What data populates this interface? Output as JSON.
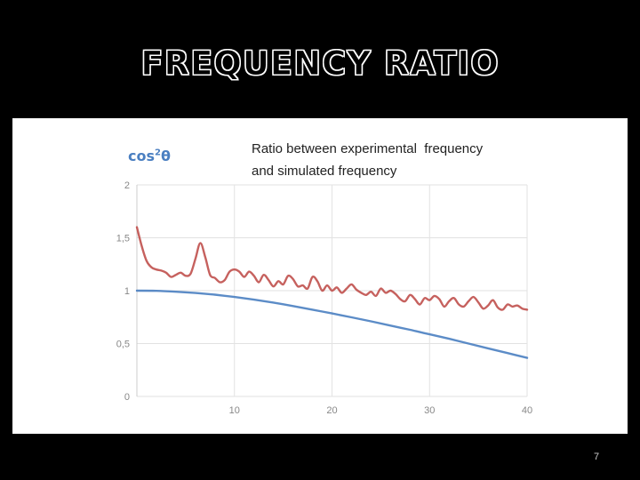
{
  "slide": {
    "title": "FREQUENCY RATIO",
    "page_number": "7"
  },
  "chart_data": {
    "type": "line",
    "title": "",
    "xlabel": "",
    "ylabel": "",
    "xlim": [
      0,
      40
    ],
    "ylim": [
      0,
      2
    ],
    "x_ticks": [
      10,
      20,
      30,
      40
    ],
    "x_tick_labels": [
      "10",
      "20",
      "30",
      "40"
    ],
    "y_ticks": [
      0,
      0.5,
      1,
      1.5,
      2
    ],
    "y_tick_labels": [
      "0",
      "0,5",
      "1",
      "1,5",
      "2"
    ],
    "grid": true,
    "series": [
      {
        "name": "cos²θ",
        "name_base": "cos",
        "name_sup": "2",
        "name_tail": "θ",
        "color": "#4a7fc1",
        "x": [
          0,
          2,
          4,
          6,
          8,
          10,
          12,
          14,
          16,
          18,
          20,
          22,
          24,
          26,
          28,
          30,
          32,
          34,
          36,
          38,
          40
        ],
        "y": [
          1.0,
          0.998,
          0.99,
          0.978,
          0.962,
          0.94,
          0.915,
          0.887,
          0.855,
          0.82,
          0.785,
          0.748,
          0.71,
          0.67,
          0.63,
          0.587,
          0.545,
          0.5,
          0.455,
          0.41,
          0.365
        ]
      },
      {
        "name": "Ratio between experimental frequency and simulated frequency",
        "name_line1": "Ratio between experimental  frequency",
        "name_line2": "and simulated frequency",
        "color": "#c0504d",
        "x": [
          0,
          0.5,
          1,
          1.5,
          2,
          2.5,
          3,
          3.5,
          4,
          4.5,
          5,
          5.5,
          6,
          6.5,
          7,
          7.5,
          8,
          8.5,
          9,
          9.5,
          10,
          10.5,
          11,
          11.5,
          12,
          12.5,
          13,
          13.5,
          14,
          14.5,
          15,
          15.5,
          16,
          16.5,
          17,
          17.5,
          18,
          18.5,
          19,
          19.5,
          20,
          20.5,
          21,
          21.5,
          22,
          22.5,
          23,
          23.5,
          24,
          24.5,
          25,
          25.5,
          26,
          26.5,
          27,
          27.5,
          28,
          28.5,
          29,
          29.5,
          30,
          30.5,
          31,
          31.5,
          32,
          32.5,
          33,
          33.5,
          34,
          34.5,
          35,
          35.5,
          36,
          36.5,
          37,
          37.5,
          38,
          38.5,
          39,
          39.5,
          40
        ],
        "y": [
          1.6,
          1.42,
          1.28,
          1.22,
          1.2,
          1.19,
          1.17,
          1.13,
          1.15,
          1.17,
          1.14,
          1.16,
          1.3,
          1.45,
          1.32,
          1.15,
          1.12,
          1.08,
          1.1,
          1.18,
          1.2,
          1.18,
          1.13,
          1.18,
          1.14,
          1.08,
          1.15,
          1.1,
          1.04,
          1.09,
          1.06,
          1.14,
          1.11,
          1.04,
          1.05,
          1.02,
          1.13,
          1.09,
          1.0,
          1.05,
          1.0,
          1.03,
          0.98,
          1.02,
          1.06,
          1.01,
          0.98,
          0.96,
          0.99,
          0.95,
          1.02,
          0.98,
          1.0,
          0.97,
          0.92,
          0.9,
          0.96,
          0.92,
          0.87,
          0.93,
          0.91,
          0.95,
          0.92,
          0.85,
          0.9,
          0.93,
          0.87,
          0.85,
          0.9,
          0.94,
          0.89,
          0.83,
          0.86,
          0.91,
          0.84,
          0.82,
          0.87,
          0.85,
          0.86,
          0.83,
          0.82
        ]
      }
    ]
  }
}
